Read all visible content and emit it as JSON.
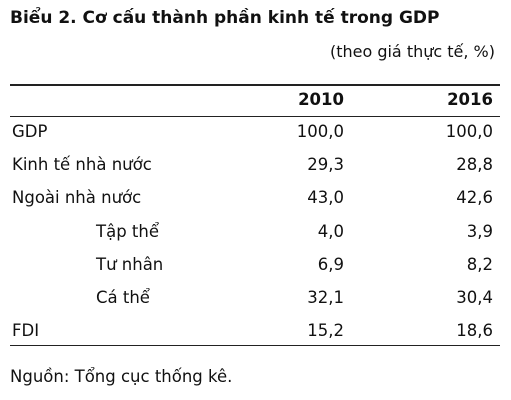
{
  "title": "Biểu 2. Cơ cấu thành phần kinh tế trong GDP",
  "subtitle": "(theo giá thực tế, %)",
  "table": {
    "header": [
      "2010",
      "2016"
    ],
    "rows": [
      [
        "GDP",
        "100,0",
        "100,0"
      ],
      [
        "Kinh tế nhà nước",
        "29,3",
        "28,8"
      ],
      [
        "Ngoài nhà nước",
        "43,0",
        "42,6"
      ],
      [
        "Tập thể",
        "4,0",
        "3,9"
      ],
      [
        "Tư nhân",
        "6,9",
        "8,2"
      ],
      [
        "Cá thể",
        "32,1",
        "30,4"
      ],
      [
        "FDI",
        "15,2",
        "18,6"
      ]
    ]
  },
  "source": "Nguồn: Tổng cục thống kê."
}
